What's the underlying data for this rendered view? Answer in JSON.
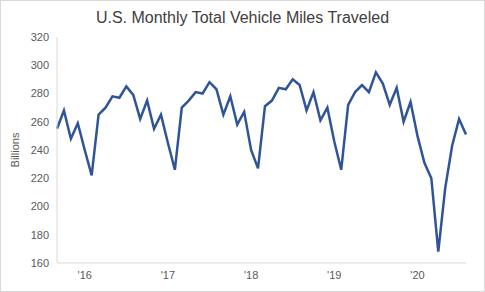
{
  "chart_data": {
    "type": "line",
    "title": "U.S. Monthly Total Vehicle Miles Traveled",
    "y_label": "Billions",
    "categories": [
      null,
      null,
      null,
      null,
      "'16",
      null,
      null,
      null,
      null,
      null,
      null,
      null,
      null,
      null,
      null,
      null,
      "'17",
      null,
      null,
      null,
      null,
      null,
      null,
      null,
      null,
      null,
      null,
      null,
      "'18",
      null,
      null,
      null,
      null,
      null,
      null,
      null,
      null,
      null,
      null,
      null,
      "'19",
      null,
      null,
      null,
      null,
      null,
      null,
      null,
      null,
      null,
      null,
      null,
      "'20",
      null,
      null,
      null,
      null,
      null,
      null,
      null
    ],
    "values": [
      255,
      268,
      248,
      259,
      240,
      222,
      265,
      270,
      278,
      277,
      285,
      279,
      262,
      275,
      255,
      265,
      245,
      226,
      270,
      275,
      281,
      280,
      288,
      283,
      265,
      278,
      258,
      267,
      240,
      227,
      271,
      275,
      284,
      283,
      290,
      286,
      268,
      281,
      261,
      270,
      246,
      226,
      272,
      281,
      286,
      281,
      295,
      287,
      272,
      284,
      260,
      274,
      250,
      231,
      220,
      168,
      213,
      243,
      262,
      251
    ],
    "color": "#2f5597",
    "ylim": [
      160,
      320
    ],
    "yticks": [
      160,
      180,
      200,
      220,
      240,
      260,
      280,
      300,
      320
    ],
    "grid": false
  }
}
